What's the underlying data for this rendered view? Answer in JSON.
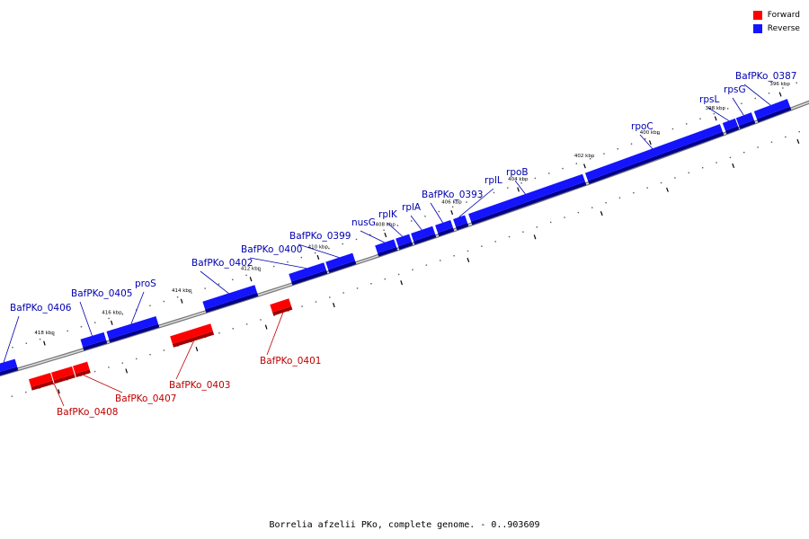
{
  "legend": {
    "forward_label": "Forward",
    "reverse_label": "Reverse",
    "forward_color": "#ff0000",
    "reverse_color": "#1414ff"
  },
  "caption": "Borrelia afzelii PKo, complete genome. - 0..903609",
  "colors": {
    "forward": "#ff0000",
    "forward_dark": "#a00000",
    "reverse": "#1414ff",
    "reverse_dark": "#00008a",
    "forward_label": "#c00000",
    "reverse_label": "#0000b0",
    "backbone": "#999999"
  },
  "ticks": [
    {
      "label": "396 kbp"
    },
    {
      "label": "398 kbp"
    },
    {
      "label": "400 kbp"
    },
    {
      "label": "402 kbp"
    },
    {
      "label": "404 kbp"
    },
    {
      "label": "406 kbp"
    },
    {
      "label": "408 kbp"
    },
    {
      "label": "410 kbp"
    },
    {
      "label": "412 kbp"
    },
    {
      "label": "414 kbp"
    },
    {
      "label": "416 kbp"
    },
    {
      "label": "418 kbp"
    }
  ],
  "genes": {
    "reverse": [
      {
        "label": "BafPKo_0387"
      },
      {
        "label": "rpsG"
      },
      {
        "label": "rpsL"
      },
      {
        "label": "rpoC"
      },
      {
        "label": "rpoB"
      },
      {
        "label": "rplL"
      },
      {
        "label": "BafPKo_0393"
      },
      {
        "label": "rplA"
      },
      {
        "label": "rplK"
      },
      {
        "label": "nusG"
      },
      {
        "label": "BafPKo_0399"
      },
      {
        "label": "BafPKo_0400"
      },
      {
        "label": "BafPKo_0402"
      },
      {
        "label": "proS"
      },
      {
        "label": "BafPKo_0405"
      },
      {
        "label": "BafPKo_0406"
      }
    ],
    "forward": [
      {
        "label": "BafPKo_0401"
      },
      {
        "label": "BafPKo_0403"
      },
      {
        "label": "BafPKo_0407"
      },
      {
        "label": "BafPKo_0408"
      }
    ]
  }
}
